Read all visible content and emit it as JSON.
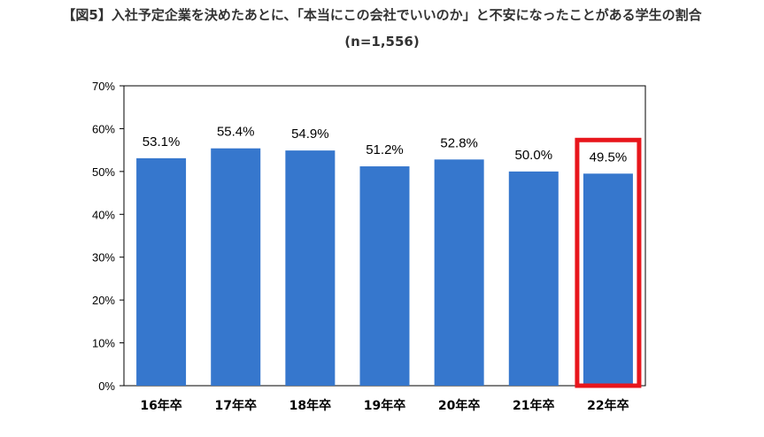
{
  "chart_data": {
    "type": "bar",
    "title": "【図5】入社予定企業を決めたあとに、「本当にこの会社でいいのか」と不安になったことがある学生の割合",
    "subtitle": "(n=1,556)",
    "categories": [
      "16年卒",
      "17年卒",
      "18年卒",
      "19年卒",
      "20年卒",
      "21年卒",
      "22年卒"
    ],
    "values": [
      53.1,
      55.4,
      54.9,
      51.2,
      52.8,
      50.0,
      49.5
    ],
    "value_labels": [
      "53.1%",
      "55.4%",
      "54.9%",
      "51.2%",
      "52.8%",
      "50.0%",
      "49.5%"
    ],
    "y_ticks": [
      0,
      10,
      20,
      30,
      40,
      50,
      60,
      70
    ],
    "y_tick_labels": [
      "0%",
      "10%",
      "20%",
      "30%",
      "40%",
      "50%",
      "60%",
      "70%"
    ],
    "ylim": [
      0,
      70
    ],
    "xlabel": "",
    "ylabel": "",
    "grid": false,
    "highlighted_category": "22年卒",
    "colors": {
      "bar": "#3677cd",
      "highlight": "#e8161c",
      "axis": "#000000"
    }
  }
}
